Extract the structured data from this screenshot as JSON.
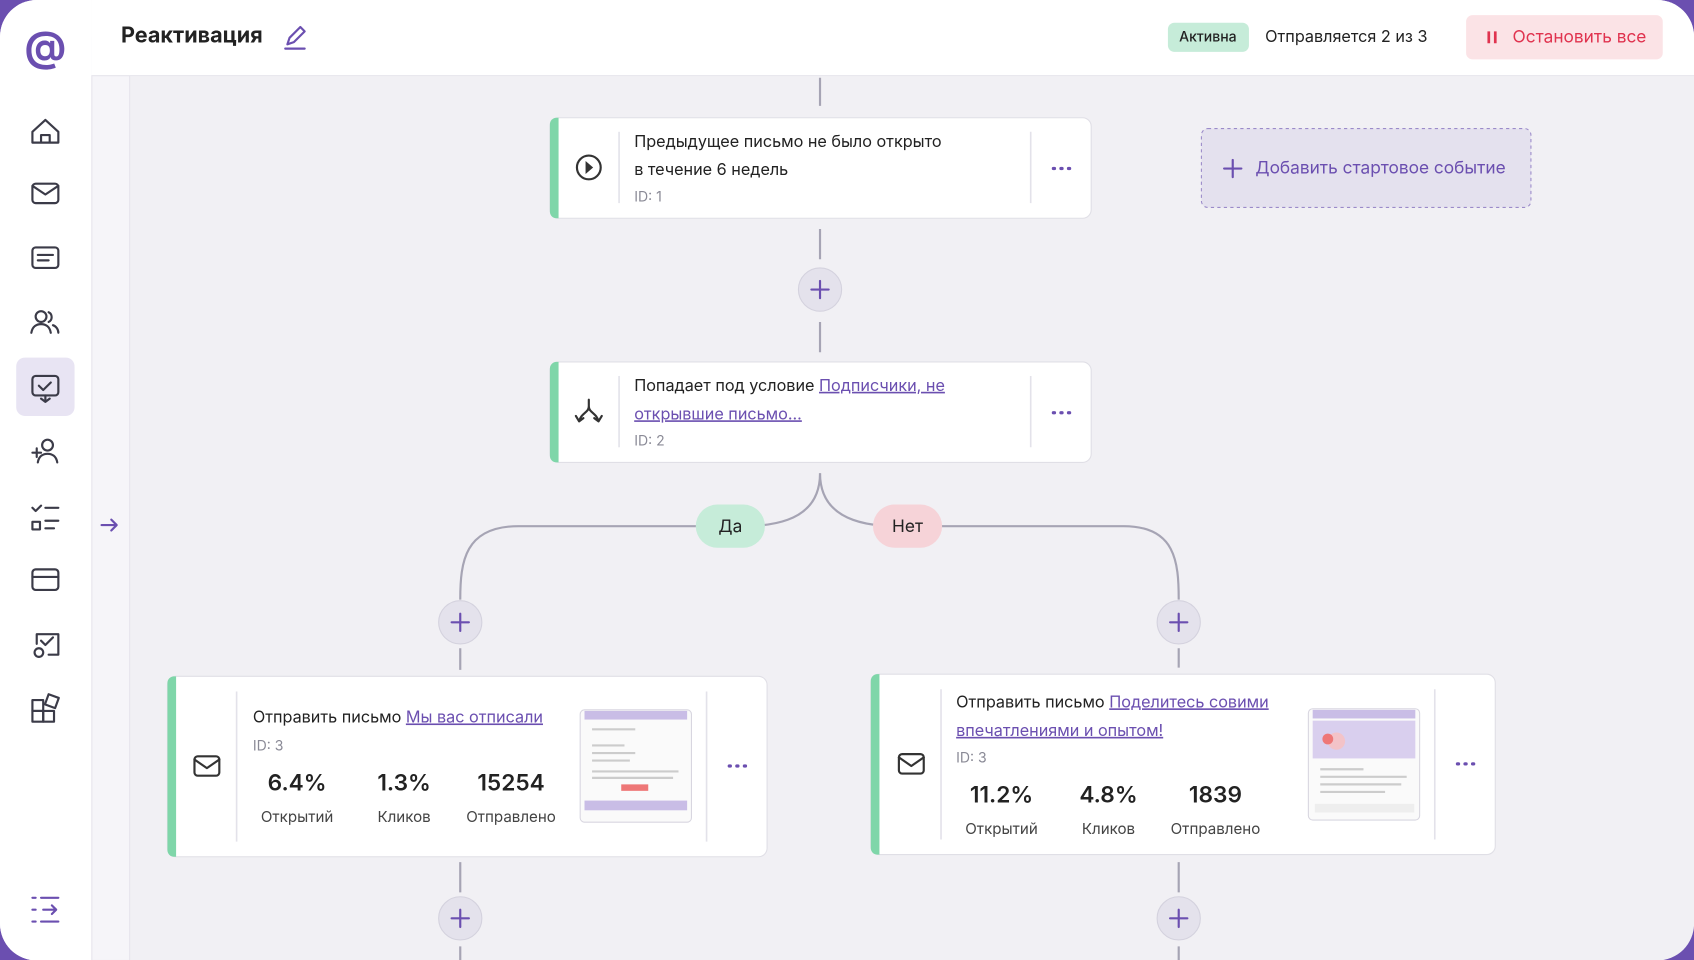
{
  "header": {
    "title": "Реактивация",
    "status": "Активна",
    "sending": "Отправляется 2 из 3",
    "stop_button": "Остановить все"
  },
  "add_start_event": "Добавить стартовое событие",
  "nodes": [
    {
      "text_lines": [
        "Предыдущее письмо не было открыто",
        "в течение 6 недель"
      ],
      "id": "ID: 1"
    },
    {
      "prefix": "Попадает под условие ",
      "link_lines": [
        "Подписчики, не",
        "открывшие письмо..."
      ],
      "id": "ID: 2"
    }
  ],
  "branches": {
    "yes": "Да",
    "no": "Нет"
  },
  "emails": [
    {
      "prefix": "Отправить письмо ",
      "link_lines": [
        "Мы вас отписали"
      ],
      "id": "ID: 3",
      "stats": [
        {
          "value": "6.4%",
          "label": "Открытий"
        },
        {
          "value": "1.3%",
          "label": "Кликов"
        },
        {
          "value": "15254",
          "label": "Отправлено"
        }
      ]
    },
    {
      "prefix": "Отправить письмо ",
      "link_lines": [
        "Поделитесь совими",
        "впечатлениями и опытом!"
      ],
      "id": "ID: 3",
      "stats": [
        {
          "value": "11.2%",
          "label": "Открытий"
        },
        {
          "value": "4.8%",
          "label": "Кликов"
        },
        {
          "value": "1839",
          "label": "Отправлено"
        }
      ]
    }
  ]
}
